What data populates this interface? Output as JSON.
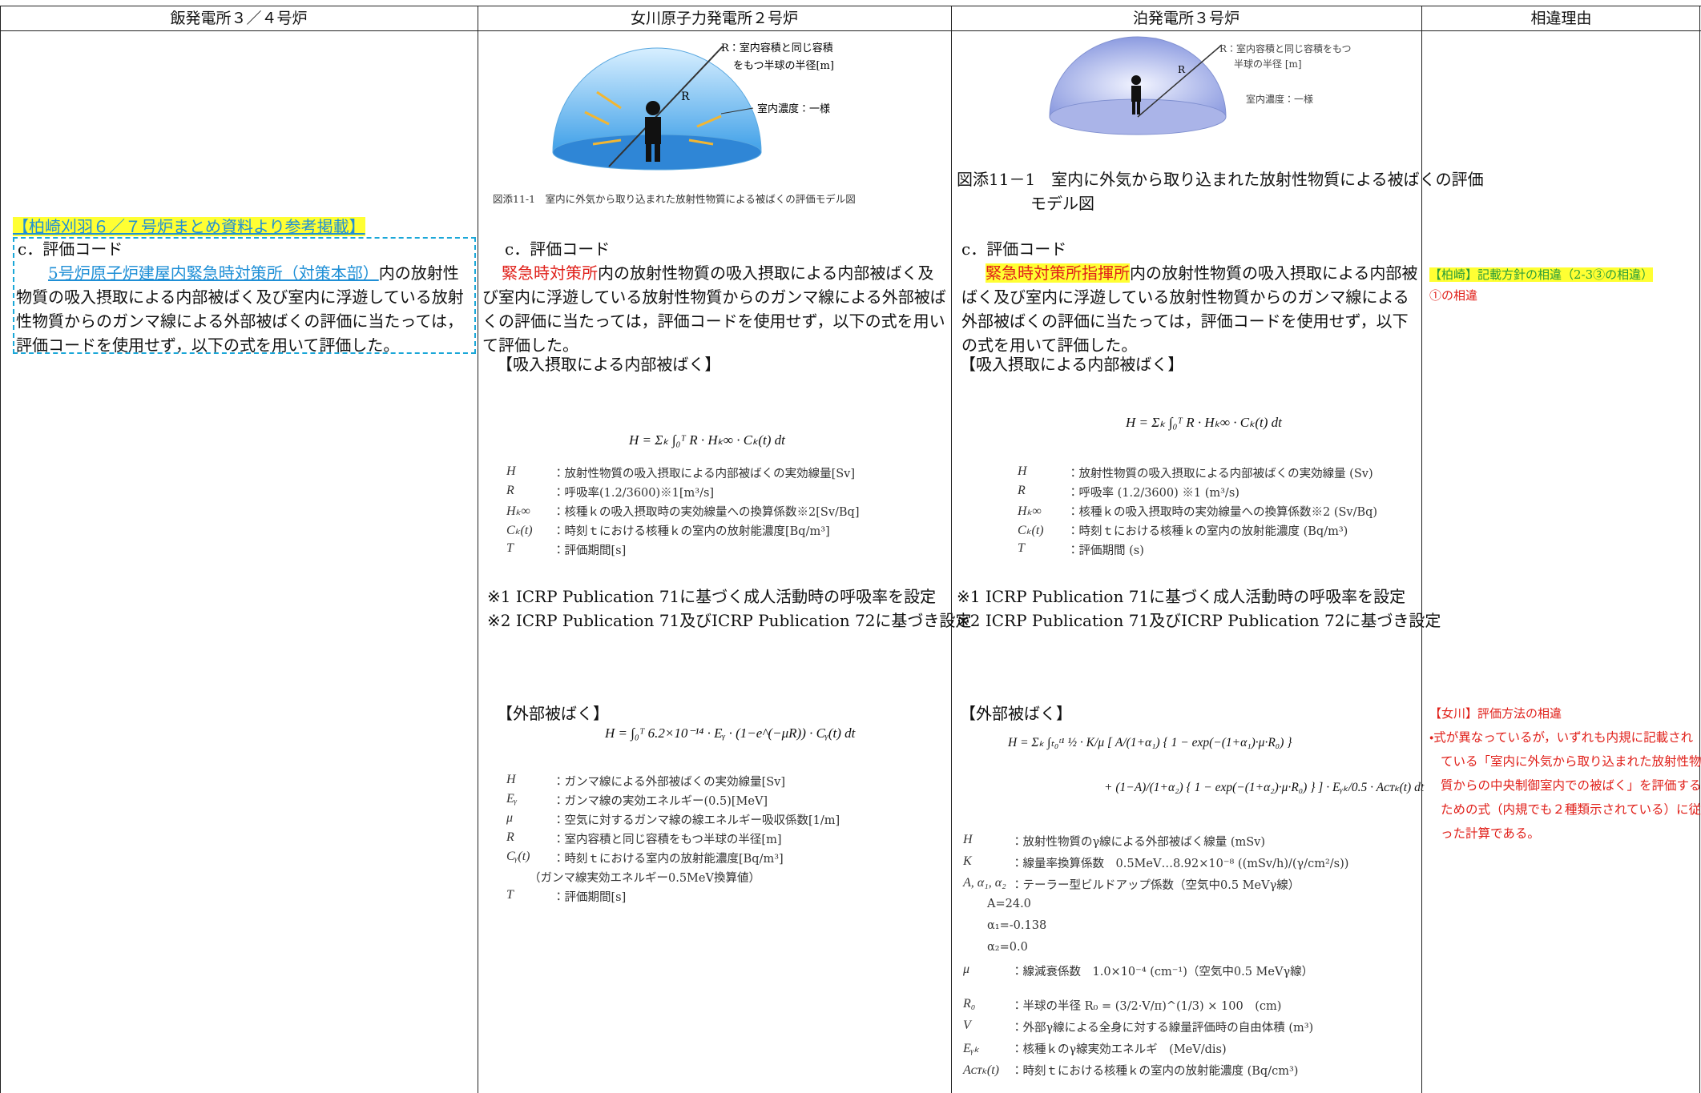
{
  "header": {
    "columns": [
      "飯発電所３／４号炉",
      "女川原子力発電所２号炉",
      "泊発電所３号炉",
      "相違理由"
    ]
  },
  "col1": {
    "note": "【柏崎刈羽６／７号炉まとめ資料より参考掲載】",
    "heading": "c．評価コード",
    "para_lead": "5号炉原子炉建屋内緊急時対策所（対策本部）",
    "para": "内の放射性物質の吸入摂取による内部被ばく及び室内に浮遊している放射性物質からのガンマ線による外部被ばくの評価に当たっては，評価コードを使用せず，以下の式を用いて評価した。"
  },
  "col2": {
    "diagram": {
      "label1": "R：室内容積と同じ容積",
      "label2": "をもつ半球の半径[m]",
      "r": "R",
      "conc": "室内濃度：一様"
    },
    "caption": "図添11-1　室内に外気から取り込まれた放射性物質による被ばくの評価モデル図",
    "heading": "c．評価コード",
    "para_lead": "緊急時対策所",
    "para": "内の放射性物質の吸入摂取による内部被ばく及び室内に浮遊している放射性物質からのガンマ線による外部被ばくの評価に当たっては，評価コードを使用せず，以下の式を用いて評価した。",
    "internal_title": "【吸入摂取による内部被ばく】",
    "internal_formula": "H = Σₖ ∫₀ᵀ R · Hₖ∞ · Cₖ(t) dt",
    "internal_defs": [
      {
        "sym": "H",
        "desc": "：放射性物質の吸入摂取による内部被ばくの実効線量[Sv]"
      },
      {
        "sym": "R",
        "desc": "：呼吸率(1.2/3600)※1[m³/s]"
      },
      {
        "sym": "Hₖ∞",
        "desc": "：核種ｋの吸入摂取時の実効線量への換算係数※2[Sv/Bq]"
      },
      {
        "sym": "Cₖ(t)",
        "desc": "：時刻ｔにおける核種ｋの室内の放射能濃度[Bq/m³]"
      },
      {
        "sym": "T",
        "desc": "：評価期間[s]"
      }
    ],
    "notes": [
      "※1 ICRP Publication 71に基づく成人活動時の呼吸率を設定",
      "※2 ICRP Publication 71及びICRP Publication 72に基づき設定"
    ],
    "external_title": "【外部被ばく】",
    "external_formula": "H = ∫₀ᵀ 6.2×10⁻¹⁴ · Eᵧ · (1−e^(−μR)) · Cᵧ(t) dt",
    "external_defs": [
      {
        "sym": "H",
        "desc": "：ガンマ線による外部被ばくの実効線量[Sv]"
      },
      {
        "sym": "Eᵧ",
        "desc": "：ガンマ線の実効エネルギー(0.5)[MeV]"
      },
      {
        "sym": "μ",
        "desc": "：空気に対するガンマ線の線エネルギー吸収係数[1/m]"
      },
      {
        "sym": "R",
        "desc": "：室内容積と同じ容積をもつ半球の半径[m]"
      },
      {
        "sym": "Cᵧ(t)",
        "desc": "：時刻ｔにおける室内の放射能濃度[Bq/m³]"
      },
      {
        "sym": "",
        "desc": "（ガンマ線実効エネルギー0.5MeV換算値）"
      },
      {
        "sym": "T",
        "desc": "：評価期間[s]"
      }
    ]
  },
  "col3": {
    "diagram": {
      "label1": "R：室内容積と同じ容積をもつ",
      "label2": "半球の半径 [m]",
      "r": "R",
      "conc": "室内濃度：一様"
    },
    "caption": "図添11－1　室内に外気から取り込まれた放射性物質による被ばくの評価モデル図",
    "heading": "c．評価コード",
    "para_lead": "緊急時対策所指揮所",
    "para": "内の放射性物質の吸入摂取による内部被ばく及び室内に浮遊している放射性物質からのガンマ線による外部被ばくの評価に当たっては，評価コードを使用せず，以下の式を用いて評価した。",
    "internal_title": "【吸入摂取による内部被ばく】",
    "internal_formula": "H = Σₖ ∫₀ᵀ R · Hₖ∞ · Cₖ(t) dt",
    "internal_defs": [
      {
        "sym": "H",
        "desc": "：放射性物質の吸入摂取による内部被ばくの実効線量 (Sv)"
      },
      {
        "sym": "R",
        "desc": "：呼吸率 (1.2/3600) ※1 (m³/s)"
      },
      {
        "sym": "Hₖ∞",
        "desc": "：核種ｋの吸入摂取時の実効線量への換算係数※2 (Sv/Bq)"
      },
      {
        "sym": "Cₖ(t)",
        "desc": "：時刻ｔにおける核種ｋの室内の放射能濃度 (Bq/m³)"
      },
      {
        "sym": "T",
        "desc": "：評価期間 (s)"
      }
    ],
    "notes": [
      "※1 ICRP Publication 71に基づく成人活動時の呼吸率を設定",
      "※2 ICRP Publication 71及びICRP Publication 72に基づき設定"
    ],
    "external_title": "【外部被ばく】",
    "external_formula": [
      "H = Σₖ ∫ₜ₀ᵗ¹ ½ · K/μ [ A/(1+α₁) { 1 − exp(−(1+α₁)·μ·R₀) }",
      "+ (1−A)/(1+α₂) { 1 − exp(−(1+α₂)·μ·R₀) } ] · Eᵧₖ/0.5 · Aᴄᴛₖ(t) dt"
    ],
    "external_defs": [
      {
        "sym": "H",
        "desc": "：放射性物質のγ線による外部被ばく線量 (mSv)"
      },
      {
        "sym": "K",
        "desc": "：線量率換算係数　0.5MeV…8.92×10⁻⁸ ((mSv/h)/(γ/cm²/s))"
      },
      {
        "sym": "A, α₁, α₂",
        "desc": "：テーラー型ビルドアップ係数（空気中0.5 MeVγ線）"
      },
      {
        "sym": "",
        "desc": "A=24.0"
      },
      {
        "sym": "",
        "desc": "α₁=-0.138"
      },
      {
        "sym": "",
        "desc": "α₂=0.0"
      },
      {
        "sym": "μ",
        "desc": "：線減衰係数　1.0×10⁻⁴ (cm⁻¹)（空気中0.5 MeVγ線）"
      },
      {
        "sym": "R₀",
        "desc": "：半球の半径 R₀ = (3/2·V/π)^(1/3) × 100　(cm)"
      },
      {
        "sym": "V",
        "desc": "：外部γ線による全身に対する線量評価時の自由体積 (m³)"
      },
      {
        "sym": "Eᵧₖ",
        "desc": "：核種ｋのγ線実効エネルギ　(MeV/dis)"
      },
      {
        "sym": "Aᴄᴛₖ(t)",
        "desc": "：時刻ｔにおける核種ｋの室内の放射能濃度 (Bq/cm³)"
      }
    ]
  },
  "col4": {
    "reason1_title": "【柏崎】記載方針の相違（2-3③の相違）",
    "reason1_body": "①の相違",
    "reason2_title": "【女川】評価方法の相違",
    "reason2_body": "・式が異なっているが，いずれも内規に記載されている「室内に外気から取り込まれた放射性物質からの中央制御室内での被ばく」を評価するための式（内規でも２種類示されている）に従った計算である。"
  }
}
